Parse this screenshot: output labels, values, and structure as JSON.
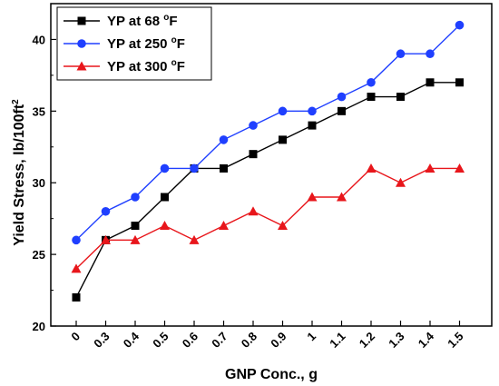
{
  "chart_data": {
    "type": "line",
    "title": "",
    "xlabel": "GNP Conc., g",
    "ylabel_main": "Yield Stress, lb/100ft",
    "ylabel_sup": "2",
    "categories": [
      "0",
      "0.3",
      "0.4",
      "0.5",
      "0.6",
      "0.7",
      "0.8",
      "0.9",
      "1",
      "1.1",
      "1.2",
      "1.3",
      "1.4",
      "1.5"
    ],
    "ylim": [
      20,
      42.5
    ],
    "yticks": [
      20,
      25,
      30,
      35,
      40
    ],
    "grid": false,
    "legend_position": "top-left",
    "series": [
      {
        "name_main": "YP at 68 ",
        "name_sup": "o",
        "name_end": "F",
        "color": "#000000",
        "marker": "square",
        "values": [
          22,
          26,
          27,
          29,
          31,
          31,
          32,
          33,
          34,
          35,
          36,
          36,
          37,
          37
        ]
      },
      {
        "name_main": "YP at 250 ",
        "name_sup": "o",
        "name_end": "F",
        "color": "#1f3fff",
        "marker": "circle",
        "values": [
          26,
          28,
          29,
          31,
          31,
          33,
          34,
          35,
          35,
          36,
          37,
          39,
          39,
          41
        ]
      },
      {
        "name_main": "YP at 300 ",
        "name_sup": "o",
        "name_end": "F",
        "color": "#e8161b",
        "marker": "triangle",
        "values": [
          24,
          26,
          26,
          27,
          26,
          27,
          28,
          27,
          29,
          29,
          31,
          30,
          31,
          31
        ]
      }
    ]
  }
}
